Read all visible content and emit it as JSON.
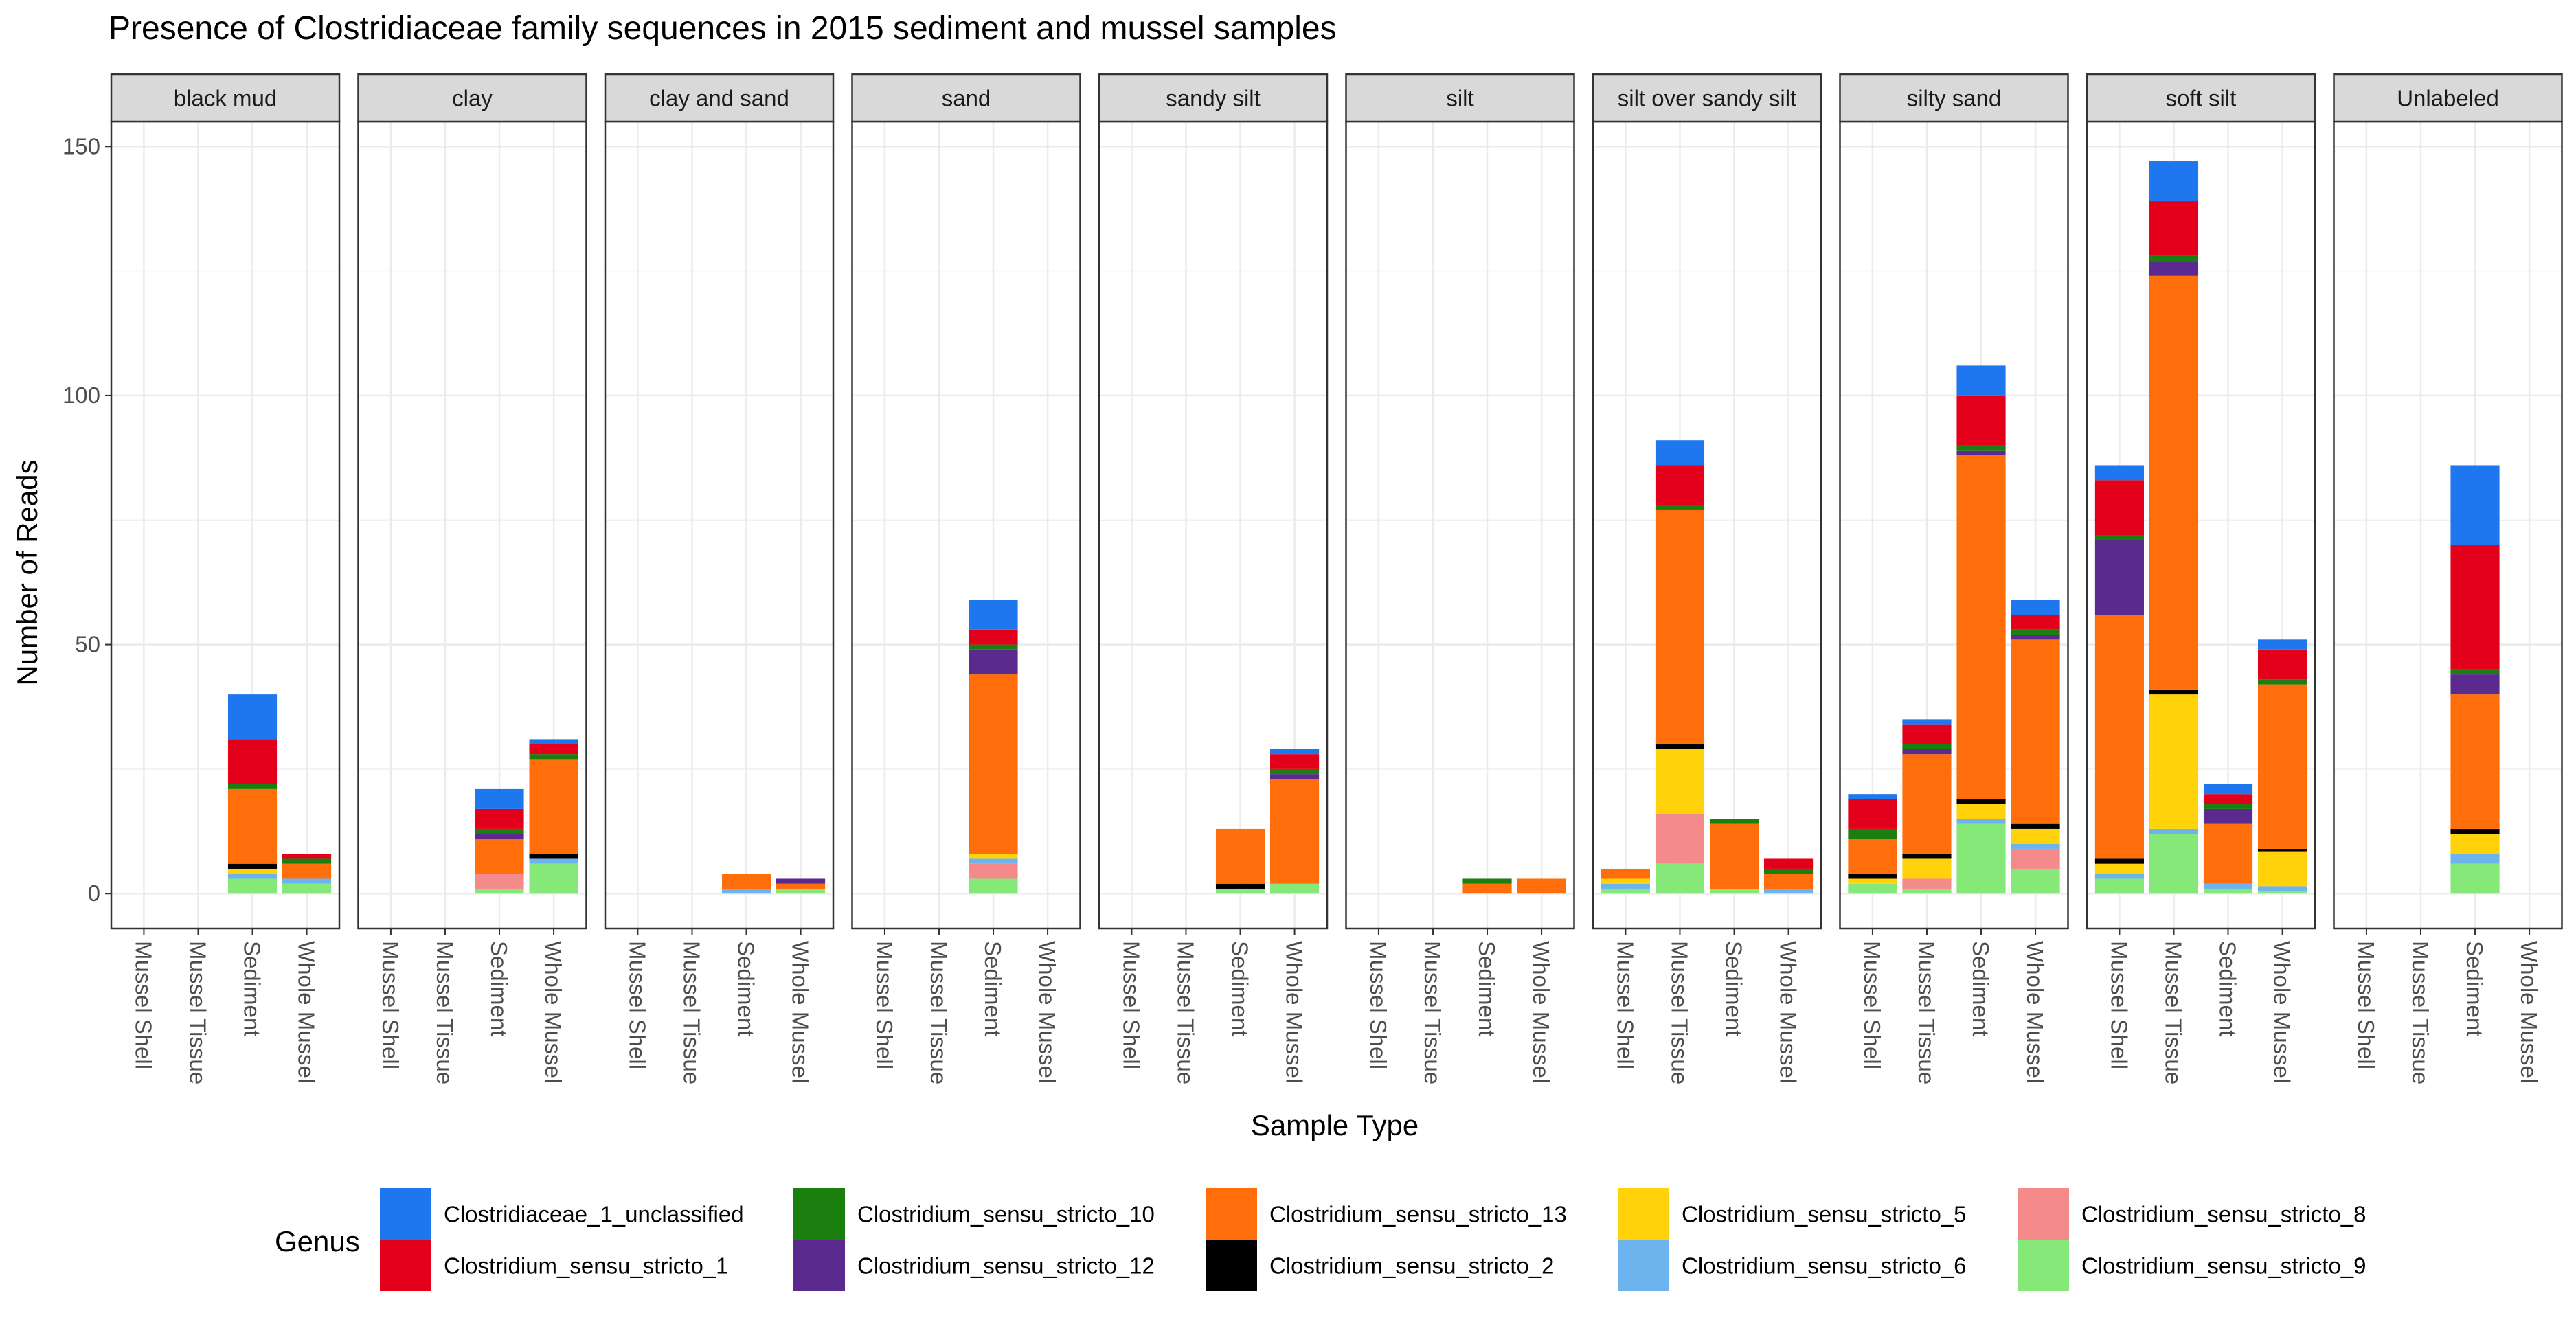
{
  "chart_data": {
    "type": "bar",
    "stacked": true,
    "facet": true,
    "title": "Presence of Clostridiaceae family sequences in 2015 sediment and mussel samples",
    "xlabel": "Sample Type",
    "ylabel": "Number of Reads",
    "ylim": [
      -7,
      155
    ],
    "yticks": [
      0,
      50,
      100,
      150
    ],
    "grid": true,
    "legend_title": "Genus",
    "legend_position": "bottom",
    "categories": [
      "Mussel Shell",
      "Mussel Tissue",
      "Sediment",
      "Whole Mussel"
    ],
    "facets": [
      "black mud",
      "clay",
      "clay and sand",
      "sand",
      "sandy silt",
      "silt",
      "silt over sandy silt",
      "silty sand",
      "soft silt",
      "Unlabeled"
    ],
    "genera": [
      {
        "name": "Clostridiaceae_1_unclassified",
        "color": "#1f77f0"
      },
      {
        "name": "Clostridium_sensu_stricto_1",
        "color": "#e2001a"
      },
      {
        "name": "Clostridium_sensu_stricto_10",
        "color": "#1a7f0e"
      },
      {
        "name": "Clostridium_sensu_stricto_12",
        "color": "#5b2a8f"
      },
      {
        "name": "Clostridium_sensu_stricto_13",
        "color": "#ff6e0a"
      },
      {
        "name": "Clostridium_sensu_stricto_2",
        "color": "#000000"
      },
      {
        "name": "Clostridium_sensu_stricto_5",
        "color": "#ffd20a"
      },
      {
        "name": "Clostridium_sensu_stricto_6",
        "color": "#6db4ef"
      },
      {
        "name": "Clostridium_sensu_stricto_8",
        "color": "#f58a8a"
      },
      {
        "name": "Clostridium_sensu_stricto_9",
        "color": "#86e878"
      }
    ],
    "stack_order_bottom_to_top": [
      "Clostridium_sensu_stricto_9",
      "Clostridium_sensu_stricto_8",
      "Clostridium_sensu_stricto_6",
      "Clostridium_sensu_stricto_5",
      "Clostridium_sensu_stricto_2",
      "Clostridium_sensu_stricto_13",
      "Clostridium_sensu_stricto_12",
      "Clostridium_sensu_stricto_10",
      "Clostridium_sensu_stricto_1",
      "Clostridiaceae_1_unclassified"
    ],
    "data": {
      "black mud": {
        "Sediment": {
          "Clostridium_sensu_stricto_9": 3,
          "Clostridium_sensu_stricto_6": 1,
          "Clostridium_sensu_stricto_5": 1,
          "Clostridium_sensu_stricto_2": 1,
          "Clostridium_sensu_stricto_13": 15,
          "Clostridium_sensu_stricto_10": 1,
          "Clostridium_sensu_stricto_1": 9,
          "Clostridiaceae_1_unclassified": 9
        },
        "Whole Mussel": {
          "Clostridium_sensu_stricto_9": 2,
          "Clostridium_sensu_stricto_6": 1,
          "Clostridium_sensu_stricto_13": 3,
          "Clostridium_sensu_stricto_10": 1,
          "Clostridium_sensu_stricto_1": 1
        }
      },
      "clay": {
        "Sediment": {
          "Clostridium_sensu_stricto_9": 1,
          "Clostridium_sensu_stricto_8": 3,
          "Clostridium_sensu_stricto_13": 7,
          "Clostridium_sensu_stricto_12": 1,
          "Clostridium_sensu_stricto_10": 1,
          "Clostridium_sensu_stricto_1": 4,
          "Clostridiaceae_1_unclassified": 4
        },
        "Whole Mussel": {
          "Clostridium_sensu_stricto_9": 6,
          "Clostridium_sensu_stricto_6": 1,
          "Clostridium_sensu_stricto_2": 1,
          "Clostridium_sensu_stricto_13": 19,
          "Clostridium_sensu_stricto_10": 1,
          "Clostridium_sensu_stricto_1": 2,
          "Clostridiaceae_1_unclassified": 1
        }
      },
      "clay and sand": {
        "Sediment": {
          "Clostridium_sensu_stricto_6": 1,
          "Clostridium_sensu_stricto_13": 3
        },
        "Whole Mussel": {
          "Clostridium_sensu_stricto_9": 1,
          "Clostridium_sensu_stricto_13": 1,
          "Clostridium_sensu_stricto_12": 1
        }
      },
      "sand": {
        "Sediment": {
          "Clostridium_sensu_stricto_9": 3,
          "Clostridium_sensu_stricto_8": 3,
          "Clostridium_sensu_stricto_6": 1,
          "Clostridium_sensu_stricto_5": 1,
          "Clostridium_sensu_stricto_13": 36,
          "Clostridium_sensu_stricto_12": 5,
          "Clostridium_sensu_stricto_10": 1,
          "Clostridium_sensu_stricto_1": 3,
          "Clostridiaceae_1_unclassified": 6
        }
      },
      "sandy silt": {
        "Sediment": {
          "Clostridium_sensu_stricto_9": 1,
          "Clostridium_sensu_stricto_2": 1,
          "Clostridium_sensu_stricto_13": 11
        },
        "Whole Mussel": {
          "Clostridium_sensu_stricto_9": 2,
          "Clostridium_sensu_stricto_13": 21,
          "Clostridium_sensu_stricto_12": 1,
          "Clostridium_sensu_stricto_10": 1,
          "Clostridium_sensu_stricto_1": 3,
          "Clostridiaceae_1_unclassified": 1
        }
      },
      "silt": {
        "Sediment": {
          "Clostridium_sensu_stricto_13": 2,
          "Clostridium_sensu_stricto_10": 1
        },
        "Whole Mussel": {
          "Clostridium_sensu_stricto_13": 3
        }
      },
      "silt over sandy silt": {
        "Mussel Shell": {
          "Clostridium_sensu_stricto_9": 1,
          "Clostridium_sensu_stricto_6": 1,
          "Clostridium_sensu_stricto_5": 1,
          "Clostridium_sensu_stricto_13": 2
        },
        "Mussel Tissue": {
          "Clostridium_sensu_stricto_9": 6,
          "Clostridium_sensu_stricto_8": 10,
          "Clostridium_sensu_stricto_5": 13,
          "Clostridium_sensu_stricto_2": 1,
          "Clostridium_sensu_stricto_13": 47,
          "Clostridium_sensu_stricto_10": 1,
          "Clostridium_sensu_stricto_1": 8,
          "Clostridiaceae_1_unclassified": 5
        },
        "Sediment": {
          "Clostridium_sensu_stricto_9": 1,
          "Clostridium_sensu_stricto_13": 13,
          "Clostridium_sensu_stricto_10": 1
        },
        "Whole Mussel": {
          "Clostridium_sensu_stricto_6": 1,
          "Clostridium_sensu_stricto_13": 3,
          "Clostridium_sensu_stricto_10": 1,
          "Clostridium_sensu_stricto_1": 2
        }
      },
      "silty sand": {
        "Mussel Shell": {
          "Clostridium_sensu_stricto_9": 2,
          "Clostridium_sensu_stricto_5": 1,
          "Clostridium_sensu_stricto_2": 1,
          "Clostridium_sensu_stricto_13": 7,
          "Clostridium_sensu_stricto_10": 2,
          "Clostridium_sensu_stricto_1": 6,
          "Clostridiaceae_1_unclassified": 1
        },
        "Mussel Tissue": {
          "Clostridium_sensu_stricto_9": 1,
          "Clostridium_sensu_stricto_8": 2,
          "Clostridium_sensu_stricto_5": 4,
          "Clostridium_sensu_stricto_2": 1,
          "Clostridium_sensu_stricto_13": 20,
          "Clostridium_sensu_stricto_12": 1,
          "Clostridium_sensu_stricto_10": 1,
          "Clostridium_sensu_stricto_1": 4,
          "Clostridiaceae_1_unclassified": 1
        },
        "Sediment": {
          "Clostridium_sensu_stricto_9": 14,
          "Clostridium_sensu_stricto_6": 1,
          "Clostridium_sensu_stricto_5": 3,
          "Clostridium_sensu_stricto_2": 1,
          "Clostridium_sensu_stricto_13": 69,
          "Clostridium_sensu_stricto_12": 1,
          "Clostridium_sensu_stricto_10": 1,
          "Clostridium_sensu_stricto_1": 10,
          "Clostridiaceae_1_unclassified": 6
        },
        "Whole Mussel": {
          "Clostridium_sensu_stricto_9": 5,
          "Clostridium_sensu_stricto_8": 4,
          "Clostridium_sensu_stricto_6": 1,
          "Clostridium_sensu_stricto_5": 3,
          "Clostridium_sensu_stricto_2": 1,
          "Clostridium_sensu_stricto_13": 37,
          "Clostridium_sensu_stricto_12": 1,
          "Clostridium_sensu_stricto_10": 1,
          "Clostridium_sensu_stricto_1": 3,
          "Clostridiaceae_1_unclassified": 3
        }
      },
      "soft silt": {
        "Mussel Shell": {
          "Clostridium_sensu_stricto_9": 3,
          "Clostridium_sensu_stricto_6": 1,
          "Clostridium_sensu_stricto_5": 2,
          "Clostridium_sensu_stricto_2": 1,
          "Clostridium_sensu_stricto_13": 49,
          "Clostridium_sensu_stricto_12": 15,
          "Clostridium_sensu_stricto_10": 1,
          "Clostridium_sensu_stricto_1": 11,
          "Clostridiaceae_1_unclassified": 3
        },
        "Mussel Tissue": {
          "Clostridium_sensu_stricto_9": 12,
          "Clostridium_sensu_stricto_6": 1,
          "Clostridium_sensu_stricto_5": 27,
          "Clostridium_sensu_stricto_2": 1,
          "Clostridium_sensu_stricto_13": 83,
          "Clostridium_sensu_stricto_12": 3,
          "Clostridium_sensu_stricto_10": 1,
          "Clostridium_sensu_stricto_1": 11,
          "Clostridiaceae_1_unclassified": 8
        },
        "Sediment": {
          "Clostridium_sensu_stricto_9": 1,
          "Clostridium_sensu_stricto_6": 1,
          "Clostridium_sensu_stricto_13": 12,
          "Clostridium_sensu_stricto_12": 3,
          "Clostridium_sensu_stricto_10": 1,
          "Clostridium_sensu_stricto_1": 2,
          "Clostridiaceae_1_unclassified": 2
        },
        "Whole Mussel": {
          "Clostridium_sensu_stricto_9": 0.5,
          "Clostridium_sensu_stricto_6": 1,
          "Clostridium_sensu_stricto_5": 7,
          "Clostridium_sensu_stricto_2": 0.5,
          "Clostridium_sensu_stricto_13": 33,
          "Clostridium_sensu_stricto_10": 1,
          "Clostridium_sensu_stricto_1": 6,
          "Clostridiaceae_1_unclassified": 2
        }
      },
      "Unlabeled": {
        "Sediment": {
          "Clostridium_sensu_stricto_9": 6,
          "Clostridium_sensu_stricto_6": 2,
          "Clostridium_sensu_stricto_5": 4,
          "Clostridium_sensu_stricto_2": 1,
          "Clostridium_sensu_stricto_13": 27,
          "Clostridium_sensu_stricto_12": 4,
          "Clostridium_sensu_stricto_10": 1,
          "Clostridium_sensu_stricto_1": 25,
          "Clostridiaceae_1_unclassified": 16
        }
      }
    }
  }
}
